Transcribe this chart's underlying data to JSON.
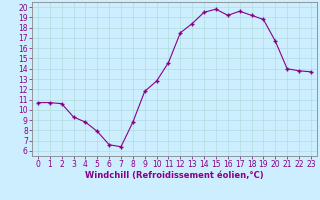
{
  "x": [
    0,
    1,
    2,
    3,
    4,
    5,
    6,
    7,
    8,
    9,
    10,
    11,
    12,
    13,
    14,
    15,
    16,
    17,
    18,
    19,
    20,
    21,
    22,
    23
  ],
  "y": [
    10.7,
    10.7,
    10.6,
    9.3,
    8.8,
    7.9,
    6.6,
    6.4,
    8.8,
    11.8,
    12.8,
    14.6,
    17.5,
    18.4,
    19.5,
    19.8,
    19.2,
    19.6,
    19.2,
    18.8,
    16.7,
    14.0,
    13.8,
    13.7
  ],
  "line_color": "#880088",
  "marker": "+",
  "marker_size": 3.5,
  "marker_color": "#880088",
  "bg_color": "#cceeff",
  "grid_color": "#aadddd",
  "xlabel": "Windchill (Refroidissement éolien,°C)",
  "xlim": [
    -0.5,
    23.5
  ],
  "ylim": [
    5.5,
    20.5
  ],
  "yticks": [
    6,
    7,
    8,
    9,
    10,
    11,
    12,
    13,
    14,
    15,
    16,
    17,
    18,
    19,
    20
  ],
  "xticks": [
    0,
    1,
    2,
    3,
    4,
    5,
    6,
    7,
    8,
    9,
    10,
    11,
    12,
    13,
    14,
    15,
    16,
    17,
    18,
    19,
    20,
    21,
    22,
    23
  ],
  "xlabel_fontsize": 6.0,
  "tick_fontsize": 5.5,
  "tick_color": "#880088",
  "axis_color": "#880088",
  "spine_color": "#888888"
}
